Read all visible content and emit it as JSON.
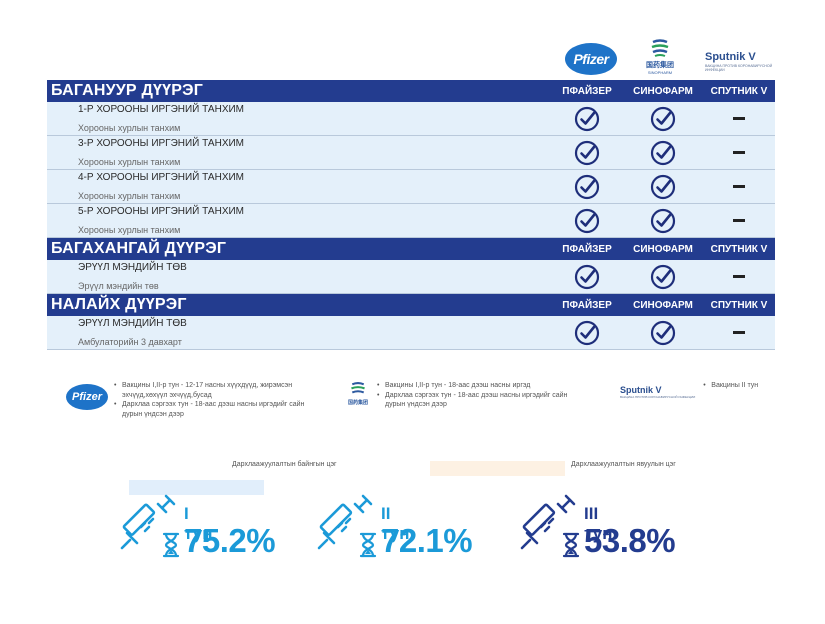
{
  "brands": {
    "pfizer": "Pfizer",
    "sinopharm": "国药集团",
    "sinopharm_sub": "SINOPHARM",
    "sputnik": "Sputnik V",
    "sputnik_sub": "ВАКЦИНА ПРОТИВ КОРОНАВИРУСНОЙ ИНФЕКЦИИ"
  },
  "columns": [
    "ПФАЙЗЕР",
    "СИНОФАРМ",
    "СПУТНИК V"
  ],
  "districts": [
    {
      "name": "БАГАНУУР ДҮҮРЭГ",
      "sites": [
        {
          "title": "1-Р ХОРООНЫ ИРГЭНИЙ ТАНХИМ",
          "sub": "Хорооны хурлын танхим",
          "vaccines": [
            true,
            true,
            false
          ]
        },
        {
          "title": "3-Р ХОРООНЫ ИРГЭНИЙ ТАНХИМ",
          "sub": "Хорооны хурлын  танхим",
          "vaccines": [
            true,
            true,
            false
          ]
        },
        {
          "title": "4-Р ХОРООНЫ ИРГЭНИЙ ТАНХИМ",
          "sub": "Хорооны хурлын танхим",
          "vaccines": [
            true,
            true,
            false
          ]
        },
        {
          "title": "5-Р ХОРООНЫ ИРГЭНИЙ ТАНХИМ",
          "sub": "Хорооны хурлын танхим",
          "vaccines": [
            true,
            true,
            false
          ]
        }
      ]
    },
    {
      "name": "БАГАХАНГАЙ ДҮҮРЭГ",
      "sites": [
        {
          "title": "ЭРҮҮЛ МЭНДИЙН ТӨВ",
          "sub": "Эрүүл мэндийн төв",
          "vaccines": [
            true,
            true,
            false
          ]
        }
      ]
    },
    {
      "name": "НАЛАЙХ ДҮҮРЭГ",
      "sites": [
        {
          "title": "ЭРҮҮЛ МЭНДИЙН ТӨВ",
          "sub": "Амбулаторийн 3 давхарт",
          "vaccines": [
            true,
            true,
            false
          ]
        }
      ]
    }
  ],
  "notes": {
    "pfizer": [
      "Вакцины I,II-р тун - 12-17 насны хүүхдүүд, жирэмсэн эхчүүд,хөхүүл эхчүүд,бусад",
      "Дархлаа сэргээх тун - 18-аас дээш насны иргэдийг сайн дурын үндсэн дээр"
    ],
    "sinopharm": [
      "Вакцины I,II-р тун - 18-аас дээш насны иргэд",
      "Дархлаа сэргээх тун - 18-аас дээш насны иргэдийг сайн дурын үндсэн дээр"
    ],
    "sputnik": [
      "Вакцины II тун"
    ]
  },
  "legend": {
    "current": "Дархлаажуулалтын байнгын цэг",
    "mobile": "Дархлаажуулалтын явуулын цэг",
    "current_color": "#e1eefb",
    "mobile_color": "#fdf1e3"
  },
  "stats": [
    {
      "dose": "I тун",
      "percent": "75.2%",
      "color": "#1b9ad8"
    },
    {
      "dose": "II тун",
      "percent": "72.1%",
      "color": "#1b9ad8"
    },
    {
      "dose": "III тун",
      "percent": "53.8%",
      "color": "#233c8f"
    }
  ],
  "colors": {
    "header": "#233c8f",
    "row": "#e4f0fa",
    "accent_light": "#1b9ad8",
    "accent_dark": "#233c8f"
  }
}
